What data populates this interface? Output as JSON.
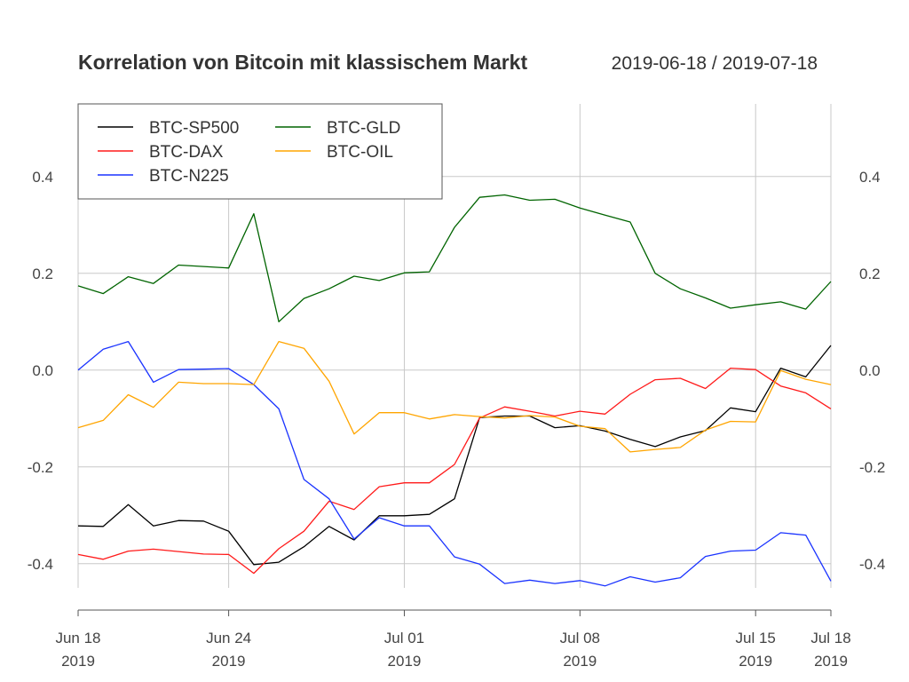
{
  "chart_data": {
    "type": "line",
    "title": "Korrelation von Bitcoin mit klassischem Markt",
    "subtitle": "2019-06-18 / 2019-07-18",
    "x": [
      "2019-06-18",
      "2019-06-19",
      "2019-06-20",
      "2019-06-21",
      "2019-06-22",
      "2019-06-23",
      "2019-06-24",
      "2019-06-25",
      "2019-06-26",
      "2019-06-27",
      "2019-06-28",
      "2019-06-29",
      "2019-06-30",
      "2019-07-01",
      "2019-07-02",
      "2019-07-03",
      "2019-07-04",
      "2019-07-05",
      "2019-07-06",
      "2019-07-07",
      "2019-07-08",
      "2019-07-09",
      "2019-07-10",
      "2019-07-11",
      "2019-07-12",
      "2019-07-13",
      "2019-07-14",
      "2019-07-15",
      "2019-07-16",
      "2019-07-17",
      "2019-07-18"
    ],
    "x_ticks": [
      {
        "date": "2019-06-18",
        "label": "Jun 18",
        "year": "2019"
      },
      {
        "date": "2019-06-24",
        "label": "Jun 24",
        "year": "2019"
      },
      {
        "date": "2019-07-01",
        "label": "Jul 01",
        "year": "2019"
      },
      {
        "date": "2019-07-08",
        "label": "Jul 08",
        "year": "2019"
      },
      {
        "date": "2019-07-15",
        "label": "Jul 15",
        "year": "2019"
      },
      {
        "date": "2019-07-18",
        "label": "Jul 18",
        "year": "2019"
      }
    ],
    "ylim": [
      -0.45,
      0.55
    ],
    "y_ticks": [
      {
        "value": 0.4,
        "label": "0.4"
      },
      {
        "value": 0.2,
        "label": "0.2"
      },
      {
        "value": 0.0,
        "label": "0.0"
      },
      {
        "value": -0.2,
        "label": "-0.2"
      },
      {
        "value": -0.4,
        "label": "-0.4"
      }
    ],
    "grid": true,
    "legend_position": "top-left",
    "series": [
      {
        "name": "BTC-SP500",
        "color": "#000000",
        "values": [
          -0.322,
          -0.323,
          -0.278,
          -0.322,
          -0.311,
          -0.312,
          -0.333,
          -0.402,
          -0.397,
          -0.365,
          -0.323,
          -0.351,
          -0.301,
          -0.301,
          -0.298,
          -0.266,
          -0.098,
          -0.095,
          -0.095,
          -0.119,
          -0.115,
          -0.126,
          -0.143,
          -0.158,
          -0.138,
          -0.125,
          -0.078,
          -0.086,
          0.004,
          -0.014,
          0.051
        ]
      },
      {
        "name": "BTC-DAX",
        "color": "#ff1a1a",
        "values": [
          -0.381,
          -0.391,
          -0.374,
          -0.37,
          -0.375,
          -0.38,
          -0.381,
          -0.42,
          -0.369,
          -0.333,
          -0.271,
          -0.288,
          -0.241,
          -0.233,
          -0.233,
          -0.195,
          -0.099,
          -0.076,
          -0.085,
          -0.095,
          -0.085,
          -0.091,
          -0.05,
          -0.02,
          -0.017,
          -0.038,
          0.004,
          0.001,
          -0.033,
          -0.047,
          -0.08
        ]
      },
      {
        "name": "BTC-N225",
        "color": "#1a33ff",
        "values": [
          0.0,
          0.043,
          0.059,
          -0.025,
          0.001,
          0.002,
          0.003,
          -0.03,
          -0.08,
          -0.226,
          -0.266,
          -0.349,
          -0.305,
          -0.322,
          -0.322,
          -0.386,
          -0.401,
          -0.441,
          -0.434,
          -0.441,
          -0.435,
          -0.446,
          -0.427,
          -0.438,
          -0.429,
          -0.385,
          -0.374,
          -0.372,
          -0.336,
          -0.341,
          -0.436
        ]
      },
      {
        "name": "BTC-GLD",
        "color": "#006400",
        "values": [
          0.174,
          0.158,
          0.193,
          0.179,
          0.217,
          0.214,
          0.211,
          0.323,
          0.1,
          0.148,
          0.168,
          0.194,
          0.185,
          0.201,
          0.203,
          0.295,
          0.357,
          0.362,
          0.351,
          0.353,
          0.335,
          0.32,
          0.306,
          0.2,
          0.168,
          0.149,
          0.128,
          0.135,
          0.141,
          0.126,
          0.183
        ]
      },
      {
        "name": "BTC-OIL",
        "color": "#ffa500",
        "values": [
          -0.119,
          -0.104,
          -0.051,
          -0.077,
          -0.025,
          -0.028,
          -0.028,
          -0.03,
          0.059,
          0.045,
          -0.023,
          -0.132,
          -0.088,
          -0.088,
          -0.101,
          -0.092,
          -0.096,
          -0.099,
          -0.094,
          -0.097,
          -0.116,
          -0.121,
          -0.169,
          -0.164,
          -0.16,
          -0.124,
          -0.106,
          -0.107,
          -0.001,
          -0.019,
          -0.03
        ]
      }
    ]
  }
}
